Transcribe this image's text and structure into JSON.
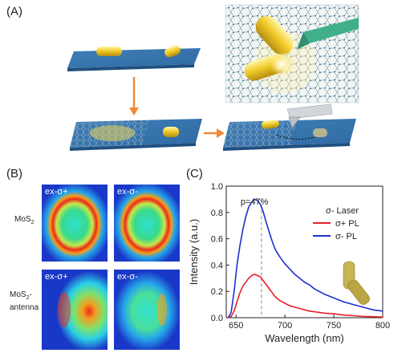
{
  "panels": {
    "a": {
      "label": "(A)"
    },
    "b": {
      "label": "(B)"
    },
    "c": {
      "label": "(C)"
    }
  },
  "pl_maps": {
    "rows": [
      {
        "label_main": "MoS",
        "label_sub": "2",
        "label_tail": "",
        "label_line2": ""
      },
      {
        "label_main": "MoS",
        "label_sub": "2",
        "label_tail": "-",
        "label_line2": "antenna"
      }
    ],
    "tiles": [
      "ex-σ+",
      "ex-σ-",
      "ex-σ+",
      "ex-σ-"
    ]
  },
  "chart_data": {
    "type": "line",
    "xlabel": "Wavelength (nm)",
    "ylabel": "Intensity (a.u.)",
    "xlim": [
      640,
      800
    ],
    "ylim": [
      0.0,
      1.0
    ],
    "xticks": [
      650,
      700,
      750,
      800
    ],
    "yticks": [
      "0.0",
      "0.2",
      "0.4",
      "0.6",
      "0.8",
      "1.0"
    ],
    "legend_title": "σ- Laser",
    "annotation": {
      "text": "p=47%",
      "x": 676
    },
    "series": [
      {
        "name": "σ+ PL",
        "color": "#e8202a",
        "x": [
          642,
          645,
          648,
          651,
          654,
          657,
          660,
          663,
          666,
          669,
          672,
          675,
          678,
          681,
          684,
          687,
          690,
          695,
          700,
          705,
          710,
          715,
          720,
          725,
          730,
          740,
          750,
          760,
          770,
          780,
          790,
          800
        ],
        "y": [
          0.0,
          0.01,
          0.05,
          0.12,
          0.19,
          0.24,
          0.27,
          0.3,
          0.32,
          0.33,
          0.32,
          0.31,
          0.28,
          0.25,
          0.22,
          0.19,
          0.16,
          0.13,
          0.11,
          0.09,
          0.08,
          0.07,
          0.06,
          0.05,
          0.045,
          0.035,
          0.03,
          0.02,
          0.015,
          0.01,
          0.008,
          0.005
        ]
      },
      {
        "name": "σ- PL",
        "color": "#1f2fcf",
        "x": [
          642,
          645,
          648,
          651,
          654,
          657,
          660,
          663,
          666,
          669,
          672,
          675,
          678,
          681,
          684,
          687,
          690,
          695,
          700,
          705,
          710,
          715,
          720,
          725,
          730,
          740,
          750,
          760,
          770,
          780,
          790,
          800
        ],
        "y": [
          0.0,
          0.04,
          0.2,
          0.4,
          0.55,
          0.67,
          0.77,
          0.84,
          0.88,
          0.9,
          0.89,
          0.86,
          0.8,
          0.72,
          0.65,
          0.58,
          0.52,
          0.46,
          0.41,
          0.37,
          0.33,
          0.3,
          0.27,
          0.25,
          0.22,
          0.18,
          0.15,
          0.12,
          0.1,
          0.08,
          0.06,
          0.05
        ]
      }
    ]
  }
}
